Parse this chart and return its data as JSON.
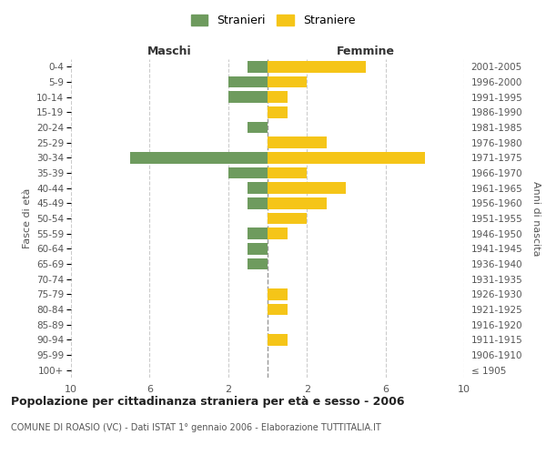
{
  "age_groups": [
    "100+",
    "95-99",
    "90-94",
    "85-89",
    "80-84",
    "75-79",
    "70-74",
    "65-69",
    "60-64",
    "55-59",
    "50-54",
    "45-49",
    "40-44",
    "35-39",
    "30-34",
    "25-29",
    "20-24",
    "15-19",
    "10-14",
    "5-9",
    "0-4"
  ],
  "birth_years": [
    "≤ 1905",
    "1906-1910",
    "1911-1915",
    "1916-1920",
    "1921-1925",
    "1926-1930",
    "1931-1935",
    "1936-1940",
    "1941-1945",
    "1946-1950",
    "1951-1955",
    "1956-1960",
    "1961-1965",
    "1966-1970",
    "1971-1975",
    "1976-1980",
    "1981-1985",
    "1986-1990",
    "1991-1995",
    "1996-2000",
    "2001-2005"
  ],
  "maschi": [
    0,
    0,
    0,
    0,
    0,
    0,
    0,
    1,
    1,
    1,
    0,
    1,
    1,
    2,
    7,
    0,
    1,
    0,
    2,
    2,
    1
  ],
  "femmine": [
    0,
    0,
    1,
    0,
    1,
    1,
    0,
    0,
    0,
    1,
    2,
    3,
    4,
    2,
    8,
    3,
    0,
    1,
    1,
    2,
    5
  ],
  "maschi_color": "#6e9b5e",
  "femmine_color": "#f5c518",
  "background_color": "#ffffff",
  "grid_color": "#cccccc",
  "title": "Popolazione per cittadinanza straniera per età e sesso - 2006",
  "subtitle": "COMUNE DI ROASIO (VC) - Dati ISTAT 1° gennaio 2006 - Elaborazione TUTTITALIA.IT",
  "xlabel_left": "Maschi",
  "xlabel_right": "Femmine",
  "ylabel_left": "Fasce di età",
  "ylabel_right": "Anni di nascita",
  "legend_maschi": "Stranieri",
  "legend_femmine": "Straniere",
  "xlim": 10,
  "title_fontsize": 9,
  "subtitle_fontsize": 7
}
